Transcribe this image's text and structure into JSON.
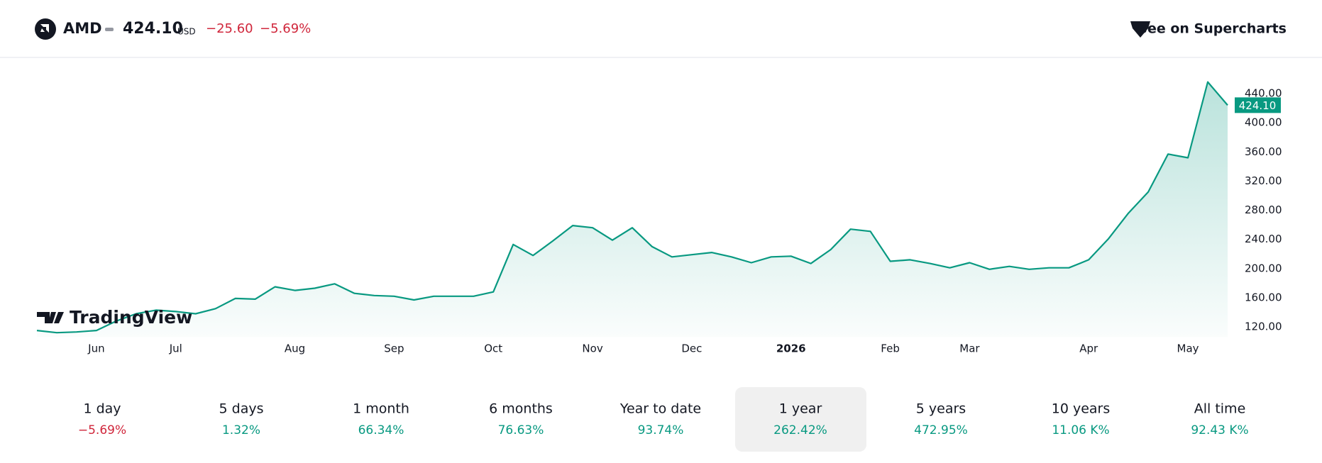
{
  "header": {
    "symbol": "AMD",
    "price": "424.10",
    "currency": "USD",
    "change": "−25.60",
    "change_percent": "−5.69%",
    "link": "See on Supercharts"
  },
  "brand": "TradingView",
  "chart_data": {
    "type": "area",
    "categories": [
      null,
      null,
      null,
      "Jun",
      null,
      null,
      null,
      "Jul",
      null,
      null,
      null,
      null,
      null,
      "Aug",
      null,
      null,
      null,
      null,
      "Sep",
      null,
      null,
      null,
      null,
      "Oct",
      null,
      null,
      null,
      null,
      "Nov",
      null,
      null,
      null,
      null,
      "Dec",
      null,
      null,
      null,
      null,
      "2026",
      null,
      null,
      null,
      null,
      "Feb",
      null,
      null,
      null,
      "Mar",
      null,
      null,
      null,
      null,
      null,
      "Apr",
      null,
      null,
      null,
      null,
      "May",
      null,
      null
    ],
    "series": [
      {
        "name": "AMD",
        "color": "#089981",
        "values": [
          115,
          112,
          113,
          115,
          128,
          138,
          143,
          141,
          138,
          145,
          159,
          158,
          175,
          170,
          173,
          179,
          166,
          163,
          162,
          157,
          162,
          162,
          162,
          168,
          233,
          218,
          238,
          259,
          256,
          239,
          256,
          230,
          216,
          219,
          222,
          216,
          208,
          216,
          217,
          207,
          226,
          254,
          251,
          210,
          212,
          207,
          201,
          208,
          199,
          203,
          199,
          201,
          201,
          212,
          241,
          276,
          305,
          357,
          352,
          456,
          424.1
        ]
      }
    ],
    "ylim": [
      106,
      476
    ],
    "yticks": [
      {
        "value": 120,
        "label": "120.00"
      },
      {
        "value": 160,
        "label": "160.00"
      },
      {
        "value": 200,
        "label": "200.00"
      },
      {
        "value": 240,
        "label": "240.00"
      },
      {
        "value": 280,
        "label": "280.00"
      },
      {
        "value": 320,
        "label": "320.00"
      },
      {
        "value": 360,
        "label": "360.00"
      },
      {
        "value": 400,
        "label": "400.00"
      },
      {
        "value": 440,
        "label": "440.00"
      }
    ],
    "grid": false
  },
  "periods": [
    {
      "label": "1 day",
      "change": "−5.69%"
    },
    {
      "label": "5 days",
      "change": "1.32%"
    },
    {
      "label": "1 month",
      "change": "66.34%"
    },
    {
      "label": "6 months",
      "change": "76.63%"
    },
    {
      "label": "Year to date",
      "change": "93.74%"
    },
    {
      "label": "1 year",
      "change": "262.42%"
    },
    {
      "label": "5 years",
      "change": "472.95%"
    },
    {
      "label": "10 years",
      "change": "11.06 K%"
    },
    {
      "label": "All time",
      "change": "92.43 K%"
    }
  ],
  "selected_period": 5
}
